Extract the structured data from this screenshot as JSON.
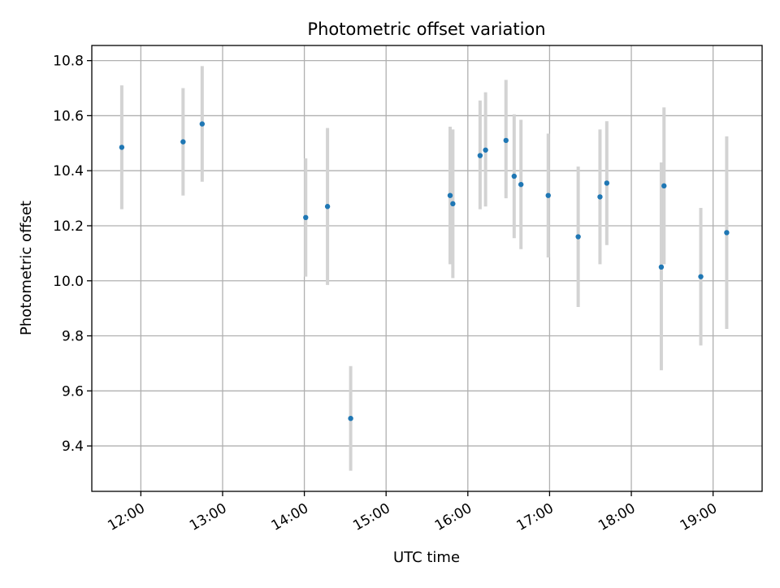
{
  "chart_data": {
    "type": "scatter",
    "title": "Photometric offset variation",
    "xlabel": "UTC time",
    "ylabel": "Photometric offset",
    "x_ticks": [
      "12:00",
      "13:00",
      "14:00",
      "15:00",
      "16:00",
      "17:00",
      "18:00",
      "19:00"
    ],
    "y_ticks": [
      "9.4",
      "9.6",
      "9.8",
      "10.0",
      "10.2",
      "10.4",
      "10.6",
      "10.8"
    ],
    "x_range": [
      "11:24",
      "19:36"
    ],
    "ylim": [
      9.235,
      10.855
    ],
    "grid": true,
    "colors": {
      "marker": "#1f77b4",
      "errorbar": "#d3d3d3",
      "grid": "#b0b0b0"
    },
    "series": [
      {
        "points": [
          {
            "x": "11:46",
            "y": 10.485,
            "yerr_low": 10.26,
            "yerr_high": 10.71
          },
          {
            "x": "12:31",
            "y": 10.505,
            "yerr_low": 10.31,
            "yerr_high": 10.7
          },
          {
            "x": "12:45",
            "y": 10.57,
            "yerr_low": 10.36,
            "yerr_high": 10.78
          },
          {
            "x": "14:01",
            "y": 10.23,
            "yerr_low": 10.015,
            "yerr_high": 10.445
          },
          {
            "x": "14:17",
            "y": 10.27,
            "yerr_low": 9.985,
            "yerr_high": 10.555
          },
          {
            "x": "14:34",
            "y": 9.5,
            "yerr_low": 9.31,
            "yerr_high": 9.69
          },
          {
            "x": "15:47",
            "y": 10.31,
            "yerr_low": 10.06,
            "yerr_high": 10.56
          },
          {
            "x": "15:49",
            "y": 10.28,
            "yerr_low": 10.01,
            "yerr_high": 10.55
          },
          {
            "x": "16:09",
            "y": 10.455,
            "yerr_low": 10.26,
            "yerr_high": 10.655
          },
          {
            "x": "16:13",
            "y": 10.475,
            "yerr_low": 10.27,
            "yerr_high": 10.685
          },
          {
            "x": "16:28",
            "y": 10.51,
            "yerr_low": 10.3,
            "yerr_high": 10.73
          },
          {
            "x": "16:34",
            "y": 10.38,
            "yerr_low": 10.155,
            "yerr_high": 10.605
          },
          {
            "x": "16:39",
            "y": 10.35,
            "yerr_low": 10.115,
            "yerr_high": 10.585
          },
          {
            "x": "16:59",
            "y": 10.31,
            "yerr_low": 10.085,
            "yerr_high": 10.535
          },
          {
            "x": "17:21",
            "y": 10.16,
            "yerr_low": 9.905,
            "yerr_high": 10.415
          },
          {
            "x": "17:37",
            "y": 10.305,
            "yerr_low": 10.06,
            "yerr_high": 10.55
          },
          {
            "x": "17:42",
            "y": 10.355,
            "yerr_low": 10.13,
            "yerr_high": 10.58
          },
          {
            "x": "18:22",
            "y": 10.05,
            "yerr_low": 9.675,
            "yerr_high": 10.43
          },
          {
            "x": "18:24",
            "y": 10.345,
            "yerr_low": 10.06,
            "yerr_high": 10.63
          },
          {
            "x": "18:51",
            "y": 10.015,
            "yerr_low": 9.765,
            "yerr_high": 10.265
          },
          {
            "x": "19:10",
            "y": 10.175,
            "yerr_low": 9.825,
            "yerr_high": 10.525
          }
        ]
      }
    ]
  }
}
